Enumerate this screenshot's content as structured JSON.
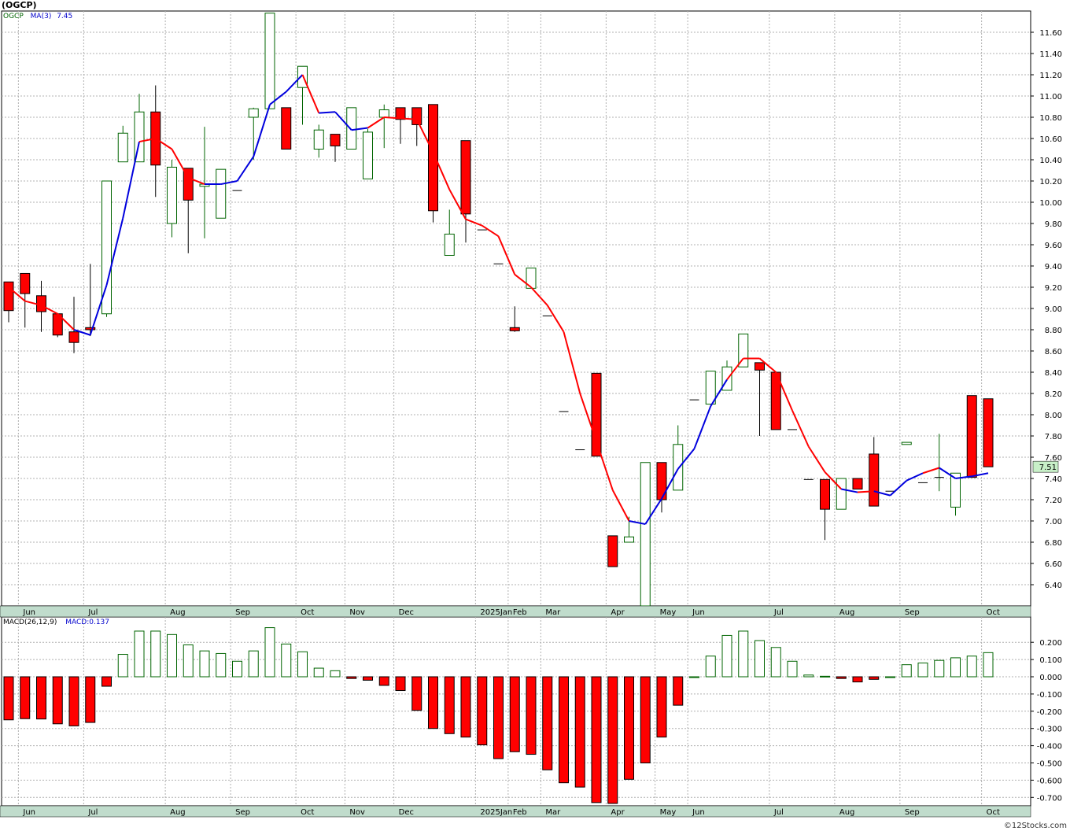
{
  "title": "(OGCP)",
  "footer": "©12Stocks.com",
  "colors": {
    "up": "#006400",
    "down": "#ff0000",
    "ma_up": "#0000dd",
    "ma_down": "#ff0000",
    "grid": "#b0b0b0",
    "axis_band": "#c0dccc",
    "last_price_bg": "#c8f0c8"
  },
  "price_panel": {
    "legend": {
      "symbol": "OGCP",
      "ma_label": "MA(3)",
      "ma_value": "7.45"
    },
    "last_price_label": "7.51",
    "y_ticks": [
      "6.40",
      "6.60",
      "6.80",
      "7.00",
      "7.20",
      "7.40",
      "7.60",
      "7.80",
      "8.00",
      "8.20",
      "8.40",
      "8.60",
      "8.80",
      "9.00",
      "9.20",
      "9.40",
      "9.60",
      "9.80",
      "10.00",
      "10.20",
      "10.40",
      "10.60",
      "10.80",
      "11.00",
      "11.20",
      "11.40",
      "11.60"
    ]
  },
  "macd_panel": {
    "legend": {
      "label": "MACD(26,12,9)",
      "value_label": "MACD:0.137"
    },
    "y_ticks": [
      "0.200",
      "0.100",
      "0.000",
      "-0.100",
      "-0.200",
      "-0.300",
      "-0.400",
      "-0.500",
      "-0.600",
      "-0.700"
    ]
  },
  "x_labels": [
    {
      "label": "Jun",
      "i": 1
    },
    {
      "label": "Jul",
      "i": 5
    },
    {
      "label": "Aug",
      "i": 10
    },
    {
      "label": "Sep",
      "i": 14
    },
    {
      "label": "Oct",
      "i": 18
    },
    {
      "label": "Nov",
      "i": 21
    },
    {
      "label": "Dec",
      "i": 24
    },
    {
      "label": "2025Jan",
      "i": 29
    },
    {
      "label": "Feb",
      "i": 31
    },
    {
      "label": "Mar",
      "i": 33
    },
    {
      "label": "Apr",
      "i": 37
    },
    {
      "label": "May",
      "i": 40
    },
    {
      "label": "Jun",
      "i": 42
    },
    {
      "label": "Jul",
      "i": 47
    },
    {
      "label": "Aug",
      "i": 51
    },
    {
      "label": "Sep",
      "i": 55
    },
    {
      "label": "Oct",
      "i": 60
    }
  ],
  "chart_data": {
    "type": "candlestick",
    "ylim": [
      6.2,
      11.8
    ],
    "macd_ylim": [
      -0.74,
      0.29
    ],
    "candles": [
      {
        "o": 9.25,
        "h": 9.25,
        "l": 8.87,
        "c": 8.98
      },
      {
        "o": 9.33,
        "h": 9.33,
        "l": 8.82,
        "c": 9.14
      },
      {
        "o": 9.12,
        "h": 9.26,
        "l": 8.78,
        "c": 8.97
      },
      {
        "o": 8.95,
        "h": 8.95,
        "l": 8.73,
        "c": 8.75
      },
      {
        "o": 8.78,
        "h": 9.11,
        "l": 8.58,
        "c": 8.68
      },
      {
        "o": 8.82,
        "h": 9.42,
        "l": 8.74,
        "c": 8.8
      },
      {
        "o": 8.95,
        "h": 10.2,
        "l": 8.92,
        "c": 10.2
      },
      {
        "o": 10.38,
        "h": 10.72,
        "l": 10.38,
        "c": 10.65
      },
      {
        "o": 10.38,
        "h": 11.02,
        "l": 10.38,
        "c": 10.85
      },
      {
        "o": 10.85,
        "h": 11.1,
        "l": 10.05,
        "c": 10.35
      },
      {
        "o": 9.8,
        "h": 10.4,
        "l": 9.67,
        "c": 10.33
      },
      {
        "o": 10.32,
        "h": 10.32,
        "l": 9.52,
        "c": 10.02
      },
      {
        "o": 10.15,
        "h": 10.71,
        "l": 9.66,
        "c": 10.17
      },
      {
        "o": 9.85,
        "h": 10.31,
        "l": 9.85,
        "c": 10.31
      },
      {
        "o": 10.11,
        "h": 10.11,
        "l": 10.11,
        "c": 10.11
      },
      {
        "o": 10.8,
        "h": 10.89,
        "l": 10.4,
        "c": 10.88
      },
      {
        "o": 10.88,
        "h": 11.78,
        "l": 10.88,
        "c": 11.78
      },
      {
        "o": 10.89,
        "h": 10.89,
        "l": 10.5,
        "c": 10.5
      },
      {
        "o": 11.08,
        "h": 11.28,
        "l": 10.73,
        "c": 11.28
      },
      {
        "o": 10.5,
        "h": 10.73,
        "l": 10.42,
        "c": 10.68
      },
      {
        "o": 10.64,
        "h": 10.64,
        "l": 10.38,
        "c": 10.53
      },
      {
        "o": 10.5,
        "h": 10.89,
        "l": 10.5,
        "c": 10.89
      },
      {
        "o": 10.22,
        "h": 10.69,
        "l": 10.22,
        "c": 10.66
      },
      {
        "o": 10.8,
        "h": 10.92,
        "l": 10.51,
        "c": 10.87
      },
      {
        "o": 10.89,
        "h": 10.89,
        "l": 10.55,
        "c": 10.78
      },
      {
        "o": 10.89,
        "h": 10.89,
        "l": 10.53,
        "c": 10.73
      },
      {
        "o": 10.92,
        "h": 10.92,
        "l": 9.81,
        "c": 9.92
      },
      {
        "o": 9.5,
        "h": 9.93,
        "l": 9.5,
        "c": 9.7
      },
      {
        "o": 10.58,
        "h": 10.58,
        "l": 9.62,
        "c": 9.89
      },
      {
        "o": 9.74,
        "h": 9.74,
        "l": 9.74,
        "c": 9.74
      },
      {
        "o": 9.42,
        "h": 9.42,
        "l": 9.42,
        "c": 9.42
      },
      {
        "o": 8.82,
        "h": 9.02,
        "l": 8.78,
        "c": 8.79
      },
      {
        "o": 9.19,
        "h": 9.38,
        "l": 9.19,
        "c": 9.38
      },
      {
        "o": 8.93,
        "h": 8.93,
        "l": 8.93,
        "c": 8.93
      },
      {
        "o": 8.03,
        "h": 8.03,
        "l": 8.03,
        "c": 8.03
      },
      {
        "o": 7.67,
        "h": 7.67,
        "l": 7.67,
        "c": 7.67
      },
      {
        "o": 8.39,
        "h": 8.39,
        "l": 7.61,
        "c": 7.61
      },
      {
        "o": 6.86,
        "h": 6.86,
        "l": 6.57,
        "c": 6.57
      },
      {
        "o": 6.8,
        "h": 7.04,
        "l": 6.8,
        "c": 6.85
      },
      {
        "o": 6.2,
        "h": 7.55,
        "l": 6.2,
        "c": 7.55
      },
      {
        "o": 7.55,
        "h": 7.55,
        "l": 7.08,
        "c": 7.2
      },
      {
        "o": 7.29,
        "h": 7.9,
        "l": 7.29,
        "c": 7.72
      },
      {
        "o": 8.14,
        "h": 8.14,
        "l": 8.14,
        "c": 8.14
      },
      {
        "o": 8.1,
        "h": 8.41,
        "l": 8.1,
        "c": 8.41
      },
      {
        "o": 8.23,
        "h": 8.51,
        "l": 8.23,
        "c": 8.45
      },
      {
        "o": 8.45,
        "h": 8.76,
        "l": 8.45,
        "c": 8.76
      },
      {
        "o": 8.49,
        "h": 8.49,
        "l": 7.8,
        "c": 8.42
      },
      {
        "o": 8.4,
        "h": 8.4,
        "l": 7.86,
        "c": 7.86
      },
      {
        "o": 7.86,
        "h": 7.86,
        "l": 7.86,
        "c": 7.86
      },
      {
        "o": 7.39,
        "h": 7.39,
        "l": 7.39,
        "c": 7.39
      },
      {
        "o": 7.39,
        "h": 7.39,
        "l": 6.82,
        "c": 7.11
      },
      {
        "o": 7.11,
        "h": 7.4,
        "l": 7.11,
        "c": 7.4
      },
      {
        "o": 7.4,
        "h": 7.4,
        "l": 7.3,
        "c": 7.3
      },
      {
        "o": 7.63,
        "h": 7.79,
        "l": 7.14,
        "c": 7.14
      },
      {
        "o": 7.28,
        "h": 7.28,
        "l": 7.28,
        "c": 7.28
      },
      {
        "o": 7.72,
        "h": 7.74,
        "l": 7.72,
        "c": 7.74
      },
      {
        "o": 7.36,
        "h": 7.36,
        "l": 7.36,
        "c": 7.36
      },
      {
        "o": 7.41,
        "h": 7.82,
        "l": 7.28,
        "c": 7.41
      },
      {
        "o": 7.13,
        "h": 7.45,
        "l": 7.05,
        "c": 7.45
      },
      {
        "o": 8.18,
        "h": 8.18,
        "l": 7.41,
        "c": 7.41
      },
      {
        "o": 8.15,
        "h": 8.15,
        "l": 7.51,
        "c": 7.51
      }
    ],
    "ma3": [
      {
        "i": 0,
        "v": 9.2,
        "dir": "down"
      },
      {
        "i": 1,
        "v": 9.07,
        "dir": "down"
      },
      {
        "i": 2,
        "v": 9.03,
        "dir": "down"
      },
      {
        "i": 3,
        "v": 8.95,
        "dir": "down"
      },
      {
        "i": 4,
        "v": 8.8,
        "dir": "down"
      },
      {
        "i": 5,
        "v": 8.75,
        "dir": "up"
      },
      {
        "i": 6,
        "v": 9.22,
        "dir": "up"
      },
      {
        "i": 7,
        "v": 9.85,
        "dir": "up"
      },
      {
        "i": 8,
        "v": 10.57,
        "dir": "up"
      },
      {
        "i": 9,
        "v": 10.6,
        "dir": "down"
      },
      {
        "i": 10,
        "v": 10.5,
        "dir": "down"
      },
      {
        "i": 11,
        "v": 10.23,
        "dir": "down"
      },
      {
        "i": 12,
        "v": 10.17,
        "dir": "down"
      },
      {
        "i": 13,
        "v": 10.17,
        "dir": "up"
      },
      {
        "i": 14,
        "v": 10.2,
        "dir": "up"
      },
      {
        "i": 15,
        "v": 10.43,
        "dir": "up"
      },
      {
        "i": 16,
        "v": 10.92,
        "dir": "up"
      },
      {
        "i": 17,
        "v": 11.04,
        "dir": "up"
      },
      {
        "i": 18,
        "v": 11.2,
        "dir": "up"
      },
      {
        "i": 19,
        "v": 10.84,
        "dir": "down"
      },
      {
        "i": 20,
        "v": 10.85,
        "dir": "up"
      },
      {
        "i": 21,
        "v": 10.68,
        "dir": "up"
      },
      {
        "i": 22,
        "v": 10.7,
        "dir": "up"
      },
      {
        "i": 23,
        "v": 10.8,
        "dir": "down"
      },
      {
        "i": 24,
        "v": 10.79,
        "dir": "down"
      },
      {
        "i": 25,
        "v": 10.78,
        "dir": "down"
      },
      {
        "i": 26,
        "v": 10.47,
        "dir": "down"
      },
      {
        "i": 27,
        "v": 10.12,
        "dir": "down"
      },
      {
        "i": 28,
        "v": 9.84,
        "dir": "down"
      },
      {
        "i": 29,
        "v": 9.78,
        "dir": "down"
      },
      {
        "i": 30,
        "v": 9.68,
        "dir": "down"
      },
      {
        "i": 31,
        "v": 9.32,
        "dir": "down"
      },
      {
        "i": 32,
        "v": 9.2,
        "dir": "down"
      },
      {
        "i": 33,
        "v": 9.03,
        "dir": "down"
      },
      {
        "i": 34,
        "v": 8.78,
        "dir": "down"
      },
      {
        "i": 35,
        "v": 8.2,
        "dir": "down"
      },
      {
        "i": 36,
        "v": 7.75,
        "dir": "down"
      },
      {
        "i": 37,
        "v": 7.29,
        "dir": "down"
      },
      {
        "i": 38,
        "v": 7.0,
        "dir": "down"
      },
      {
        "i": 39,
        "v": 6.97,
        "dir": "up"
      },
      {
        "i": 40,
        "v": 7.21,
        "dir": "up"
      },
      {
        "i": 41,
        "v": 7.49,
        "dir": "up"
      },
      {
        "i": 42,
        "v": 7.68,
        "dir": "up"
      },
      {
        "i": 43,
        "v": 8.08,
        "dir": "up"
      },
      {
        "i": 44,
        "v": 8.33,
        "dir": "up"
      },
      {
        "i": 45,
        "v": 8.53,
        "dir": "red"
      },
      {
        "i": 46,
        "v": 8.53,
        "dir": "down"
      },
      {
        "i": 47,
        "v": 8.4,
        "dir": "down"
      },
      {
        "i": 48,
        "v": 8.04,
        "dir": "down"
      },
      {
        "i": 49,
        "v": 7.7,
        "dir": "down"
      },
      {
        "i": 50,
        "v": 7.46,
        "dir": "down"
      },
      {
        "i": 51,
        "v": 7.3,
        "dir": "down"
      },
      {
        "i": 52,
        "v": 7.27,
        "dir": "up"
      },
      {
        "i": 53,
        "v": 7.28,
        "dir": "down"
      },
      {
        "i": 54,
        "v": 7.24,
        "dir": "up"
      },
      {
        "i": 55,
        "v": 7.38,
        "dir": "up"
      },
      {
        "i": 56,
        "v": 7.45,
        "dir": "up"
      },
      {
        "i": 57,
        "v": 7.5,
        "dir": "down"
      },
      {
        "i": 58,
        "v": 7.4,
        "dir": "up"
      },
      {
        "i": 59,
        "v": 7.42,
        "dir": "up"
      },
      {
        "i": 60,
        "v": 7.45,
        "dir": "up"
      }
    ],
    "macd": [
      -0.25,
      -0.243,
      -0.245,
      -0.273,
      -0.285,
      -0.265,
      -0.055,
      0.13,
      0.265,
      0.265,
      0.245,
      0.185,
      0.15,
      0.135,
      0.09,
      0.15,
      0.285,
      0.19,
      0.145,
      0.05,
      0.035,
      -0.01,
      -0.02,
      -0.05,
      -0.08,
      -0.195,
      -0.3,
      -0.33,
      -0.35,
      -0.395,
      -0.475,
      -0.435,
      -0.45,
      -0.54,
      -0.615,
      -0.64,
      -0.73,
      -0.735,
      -0.595,
      -0.5,
      -0.35,
      -0.165,
      0.0,
      0.12,
      0.24,
      0.265,
      0.21,
      0.17,
      0.09,
      0.01,
      0.003,
      -0.01,
      -0.03,
      -0.015,
      0.0,
      0.07,
      0.08,
      0.095,
      0.11,
      0.12,
      0.14
    ]
  }
}
